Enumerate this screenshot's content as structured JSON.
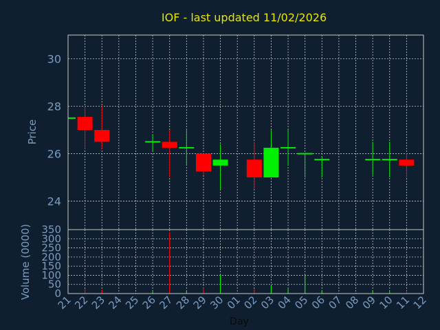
{
  "chart_data": {
    "type": "candlestick",
    "title": "IOF - last updated 11/02/2026",
    "xlabel": "Day",
    "price_panel": {
      "ylabel": "Price",
      "ylim": [
        22.8,
        31.0
      ],
      "yticks": [
        24,
        26,
        28,
        30
      ],
      "grid": true
    },
    "volume_panel": {
      "ylabel": "Volume (0000)",
      "ylim": [
        0,
        350
      ],
      "yticks": [
        0,
        50,
        100,
        150,
        200,
        250,
        300,
        350
      ],
      "grid": true
    },
    "days": [
      "21",
      "22",
      "23",
      "24",
      "25",
      "26",
      "27",
      "28",
      "29",
      "30",
      "01",
      "02",
      "03",
      "04",
      "05",
      "06",
      "07",
      "08",
      "09",
      "10",
      "11",
      "12"
    ],
    "candles": [
      {
        "day": "21",
        "open": 27.5,
        "high": 27.5,
        "low": 27.5,
        "close": 27.5,
        "volume": 0
      },
      {
        "day": "22",
        "open": 27.55,
        "high": 28.0,
        "low": 26.2,
        "close": 27.0,
        "volume": 25
      },
      {
        "day": "23",
        "open": 27.0,
        "high": 28.0,
        "low": 26.2,
        "close": 26.5,
        "volume": 20
      },
      {
        "day": "26",
        "open": 26.5,
        "high": 26.8,
        "low": 26.1,
        "close": 26.5,
        "volume": 10
      },
      {
        "day": "27",
        "open": 26.5,
        "high": 27.0,
        "low": 25.0,
        "close": 26.25,
        "volume": 335
      },
      {
        "day": "28",
        "open": 26.25,
        "high": 27.0,
        "low": 25.5,
        "close": 26.25,
        "volume": 15
      },
      {
        "day": "29",
        "open": 26.0,
        "high": 26.0,
        "low": 25.1,
        "close": 25.25,
        "volume": 30
      },
      {
        "day": "30",
        "open": 25.5,
        "high": 26.4,
        "low": 24.5,
        "close": 25.75,
        "volume": 105
      },
      {
        "day": "02",
        "open": 25.75,
        "high": 26.5,
        "low": 24.5,
        "close": 25.0,
        "volume": 25
      },
      {
        "day": "03",
        "open": 25.0,
        "high": 27.0,
        "low": 25.0,
        "close": 26.25,
        "volume": 45
      },
      {
        "day": "04",
        "open": 26.25,
        "high": 27.0,
        "low": 25.5,
        "close": 26.25,
        "volume": 25
      },
      {
        "day": "05",
        "open": 26.0,
        "high": 26.0,
        "low": 25.0,
        "close": 26.0,
        "volume": 100
      },
      {
        "day": "06",
        "open": 25.75,
        "high": 25.9,
        "low": 25.0,
        "close": 25.75,
        "volume": 15
      },
      {
        "day": "09",
        "open": 25.75,
        "high": 26.5,
        "low": 25.1,
        "close": 25.75,
        "volume": 15
      },
      {
        "day": "10",
        "open": 25.75,
        "high": 26.5,
        "low": 25.0,
        "close": 25.75,
        "volume": 10
      },
      {
        "day": "11",
        "open": 25.75,
        "high": 26.0,
        "low": 25.0,
        "close": 25.5,
        "volume": 15
      }
    ],
    "colors": {
      "background": "#0f1f30",
      "title": "#e6e600",
      "axis_text": "#7a9cc0",
      "xlabel": "#0a0a0a",
      "up": "#00ee00",
      "down": "#ff0000",
      "flat": "#00ee00",
      "grid": "#c8c8c8",
      "frame": "#c8c8c8"
    }
  }
}
